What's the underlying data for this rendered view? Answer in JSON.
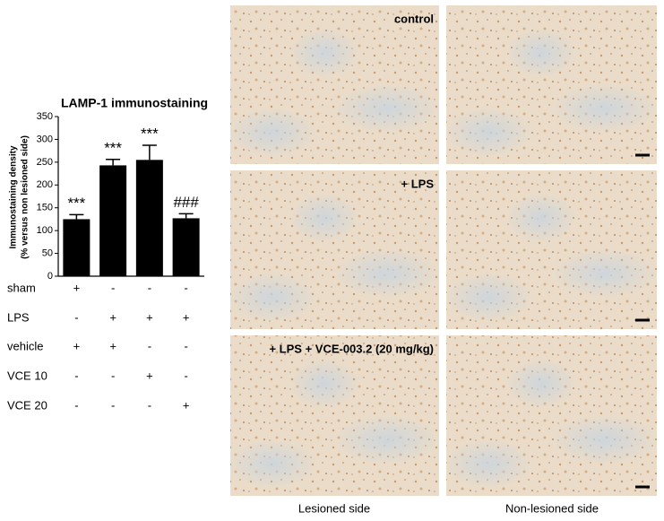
{
  "chart_data": {
    "type": "bar",
    "title": "LAMP-1 immunostaining",
    "y_label": [
      "Immunostaining density",
      "(% versus non lesioned side)"
    ],
    "categories": [
      null,
      null,
      null,
      null
    ],
    "values": [
      125,
      243,
      255,
      127
    ],
    "errors": [
      10,
      13,
      32,
      10
    ],
    "annotations": [
      "***",
      "***",
      "***",
      "###"
    ],
    "color": "#000000",
    "ylim": [
      0,
      350
    ],
    "yticks": [
      0,
      50,
      100,
      150,
      200,
      250,
      300,
      350
    ],
    "treatments": [
      {
        "label": "sham",
        "signs": [
          "+",
          "-",
          "-",
          "-"
        ]
      },
      {
        "label": "LPS",
        "signs": [
          "-",
          "+",
          "+",
          "+"
        ]
      },
      {
        "label": "vehicle",
        "signs": [
          "+",
          "+",
          "-",
          "-"
        ]
      },
      {
        "label": "VCE 10",
        "signs": [
          "-",
          "-",
          "+",
          "-"
        ]
      },
      {
        "label": "VCE 20",
        "signs": [
          "-",
          "-",
          "-",
          "+"
        ]
      }
    ]
  },
  "images": {
    "row_labels": [
      "control",
      "+ LPS",
      "+ LPS + VCE-003.2 (20 mg/kg)"
    ],
    "column_labels": [
      "Lesioned side",
      "Non-lesioned side"
    ]
  }
}
